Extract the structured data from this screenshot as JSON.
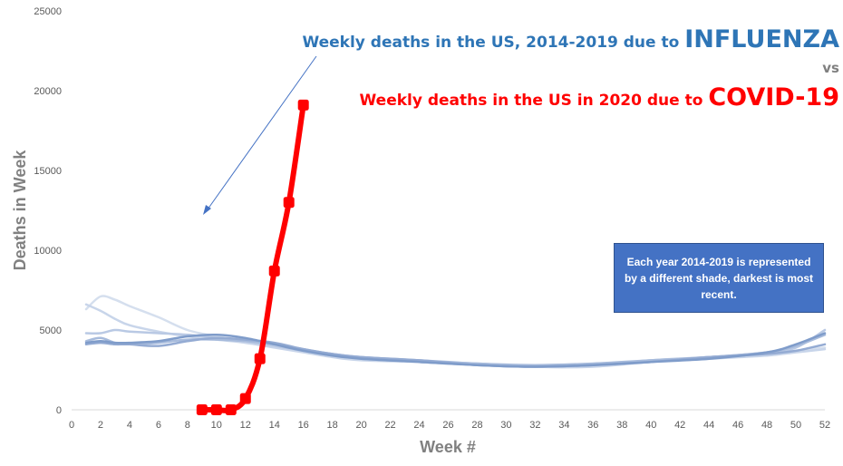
{
  "chart_data": {
    "type": "line",
    "title_flu_prefix": "Weekly deaths in the US, 2014-2019 due to ",
    "title_flu_emph": "INFLUENZA",
    "title_vs": "vs",
    "title_covid_prefix": "Weekly deaths in the US in 2020 due to ",
    "title_covid_emph": "COVID-19",
    "xlabel": "Week #",
    "ylabel": "Deaths in Week",
    "xlim": [
      0,
      52
    ],
    "ylim": [
      0,
      25000
    ],
    "x_ticks": [
      0,
      2,
      4,
      6,
      8,
      10,
      12,
      14,
      16,
      18,
      20,
      22,
      24,
      26,
      28,
      30,
      32,
      34,
      36,
      38,
      40,
      42,
      44,
      46,
      48,
      50,
      52
    ],
    "y_ticks": [
      0,
      5000,
      10000,
      15000,
      20000,
      25000
    ],
    "annotation": "Each year 2014-2019 is represented by a different shade, darkest is most recent.",
    "series": [
      {
        "color": "#d5dfee",
        "x": [
          1,
          2,
          3,
          4,
          6,
          8,
          10,
          12,
          14,
          16,
          18,
          20,
          24,
          28,
          32,
          36,
          40,
          44,
          48,
          50,
          52
        ],
        "y": [
          6300,
          7100,
          6900,
          6500,
          5800,
          5000,
          4600,
          4300,
          4000,
          3700,
          3400,
          3200,
          3000,
          2900,
          2700,
          2700,
          3100,
          3300,
          3500,
          3700,
          3900
        ]
      },
      {
        "color": "#c8d5ea",
        "x": [
          1,
          2,
          3,
          4,
          6,
          8,
          10,
          12,
          14,
          16,
          18,
          20,
          24,
          28,
          32,
          36,
          40,
          44,
          48,
          50,
          52
        ],
        "y": [
          6600,
          6200,
          5700,
          5300,
          4900,
          4600,
          4400,
          4200,
          3900,
          3600,
          3300,
          3100,
          3000,
          2900,
          2700,
          2700,
          3000,
          3200,
          3400,
          3600,
          3800
        ]
      },
      {
        "color": "#b9c9e4",
        "x": [
          1,
          2,
          3,
          4,
          6,
          8,
          10,
          12,
          14,
          16,
          18,
          20,
          24,
          28,
          32,
          36,
          40,
          44,
          48,
          50,
          52
        ],
        "y": [
          4800,
          4800,
          5000,
          4900,
          4800,
          4700,
          4500,
          4300,
          4000,
          3700,
          3400,
          3200,
          3000,
          2800,
          2700,
          2800,
          3100,
          3300,
          3600,
          3900,
          5000
        ]
      },
      {
        "color": "#a7bbdc",
        "x": [
          1,
          2,
          3,
          4,
          6,
          8,
          10,
          12,
          14,
          16,
          18,
          20,
          24,
          28,
          32,
          36,
          40,
          44,
          48,
          50,
          52
        ],
        "y": [
          4300,
          4500,
          4200,
          4100,
          4200,
          4400,
          4400,
          4300,
          4100,
          3800,
          3500,
          3300,
          3100,
          2900,
          2800,
          2900,
          3100,
          3300,
          3600,
          4000,
          4700
        ]
      },
      {
        "color": "#94abd3",
        "x": [
          1,
          2,
          3,
          4,
          6,
          8,
          10,
          12,
          14,
          16,
          18,
          20,
          24,
          28,
          32,
          36,
          40,
          44,
          48,
          50,
          52
        ],
        "y": [
          4100,
          4200,
          4100,
          4100,
          4000,
          4300,
          4500,
          4400,
          4200,
          3800,
          3500,
          3300,
          3100,
          2800,
          2700,
          2800,
          3000,
          3300,
          3500,
          3700,
          4100
        ]
      },
      {
        "color": "#7f9cca",
        "x": [
          1,
          2,
          3,
          4,
          6,
          8,
          10,
          12,
          14,
          16,
          18,
          20,
          24,
          28,
          32,
          36,
          40,
          44,
          48,
          50,
          52
        ],
        "y": [
          4200,
          4300,
          4200,
          4200,
          4300,
          4600,
          4700,
          4500,
          4100,
          3700,
          3400,
          3200,
          3000,
          2800,
          2700,
          2800,
          3000,
          3200,
          3600,
          4100,
          4800
        ]
      },
      {
        "color": "#ff0000",
        "markers": true,
        "x": [
          9,
          10,
          11,
          12,
          13,
          14,
          15,
          16
        ],
        "y": [
          0,
          0,
          0,
          700,
          3200,
          8700,
          13000,
          19100
        ]
      }
    ]
  }
}
